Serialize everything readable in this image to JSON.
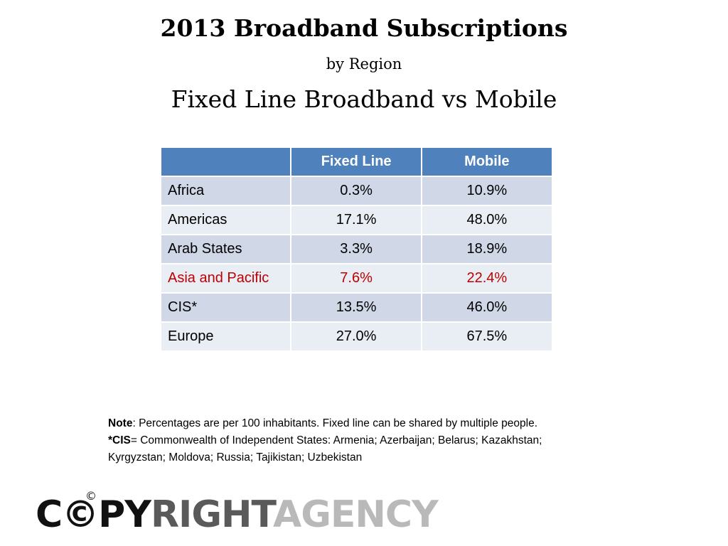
{
  "title": {
    "main": "2013 Broadband Subscriptions",
    "sub": "by Region",
    "compare": "Fixed Line Broadband vs Mobile"
  },
  "table": {
    "headers": [
      "",
      "Fixed Line",
      "Mobile"
    ],
    "rows": [
      {
        "region": "Africa",
        "fixed": "0.3%",
        "mobile": "10.9%"
      },
      {
        "region": "Americas",
        "fixed": "17.1%",
        "mobile": "48.0%"
      },
      {
        "region": "Arab States",
        "fixed": "3.3%",
        "mobile": "18.9%"
      },
      {
        "region": "Asia and Pacific",
        "fixed": "7.6%",
        "mobile": "22.4%"
      },
      {
        "region": "CIS*",
        "fixed": "13.5%",
        "mobile": "46.0%"
      },
      {
        "region": "Europe",
        "fixed": "27.0%",
        "mobile": "67.5%"
      }
    ],
    "highlight_color": "#c00000",
    "header_color": "#4f81bd"
  },
  "notes": {
    "note_label": "Note",
    "note_text": ": Percentages are per 100 inhabitants. Fixed line can be shared by multiple people.",
    "cis_label": "*CIS",
    "cis_text": "= Commonwealth of Independent States: Armenia;  Azerbaijan; Belarus;  Kazakhstan;",
    "cis_text_2": "Kyrgyzstan;  Moldova;  Russia;  Tajikistan;  Uzbekistan"
  },
  "logo": {
    "mark": "©",
    "part1": "C©PY",
    "part2": "RIGHT",
    "part3": "AGENCY"
  }
}
